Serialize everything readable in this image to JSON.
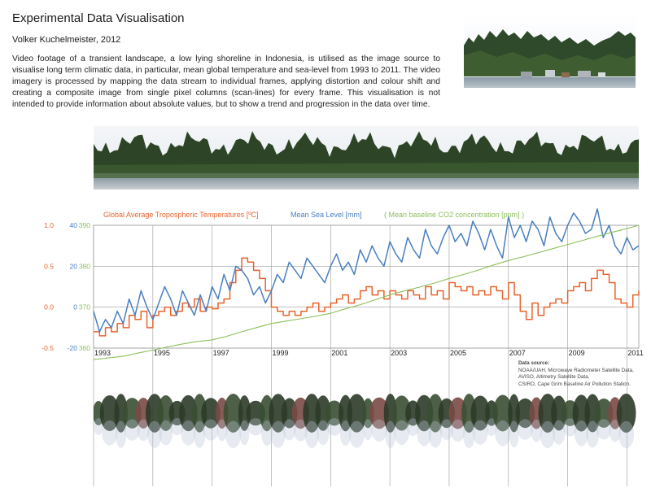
{
  "header": {
    "title": "Experimental Data Visualisation",
    "author": "Volker Kuchelmeister, 2012",
    "description": "Video footage of a transient landscape, a low lying shoreline in Indonesia, is utilised as the image source to visualise long term climatic data, in particular, mean global temperature and sea-level from 1993 to 2011. The video imagery is processed by mapping the data stream to individual frames, applying distortion and colour shift and creating a composite image from single pixel columns (scan-lines) for every frame. This visualisation is not intended to provide information about absolute values, but to show a trend and progression in the data over time."
  },
  "colors": {
    "temperature": "#e8632d",
    "sea_level": "#4a7fbf",
    "co2": "#8cbf5a",
    "grid": "#9a9a9a"
  },
  "source": {
    "heading": "Data source:",
    "lines": [
      "NOAA/UAH, Microwave Radiometer Satellite Data,",
      "AVISO, Altimetry Satellite Data,",
      "CSIRO, Cape Grim Baseline Air Pollution Station."
    ]
  },
  "chart_data": {
    "type": "line",
    "x_range": [
      1993,
      2011.4
    ],
    "x_tick_labels": [
      "1993",
      "1995",
      "1997",
      "1999",
      "2001",
      "2003",
      "2005",
      "2007",
      "2009",
      "2011"
    ],
    "grid": true,
    "axes": [
      {
        "name": "temperature",
        "unit": "ºC",
        "range": [
          -0.5,
          1.0
        ],
        "tick_labels": [
          "1.0",
          "0.5",
          "0.0",
          "-0.5"
        ]
      },
      {
        "name": "sea_level",
        "unit": "mm",
        "range": [
          -20,
          40
        ],
        "tick_labels": [
          "40",
          "20",
          "0",
          "-20"
        ]
      },
      {
        "name": "co2",
        "unit": "ppm",
        "range": [
          360,
          390
        ],
        "tick_labels": [
          "390",
          "380",
          "370",
          "360"
        ]
      }
    ],
    "series": [
      {
        "name": "Global Average Tropospheric Temperatures [ºC]",
        "legend_label": "Global Average Tropospheric Temperatures [ºC]",
        "axis": "temperature",
        "x": [
          1993.0,
          1993.2,
          1993.4,
          1993.6,
          1993.8,
          1994.0,
          1994.2,
          1994.4,
          1994.6,
          1994.8,
          1995.0,
          1995.2,
          1995.4,
          1995.6,
          1995.8,
          1996.0,
          1996.2,
          1996.4,
          1996.6,
          1996.8,
          1997.0,
          1997.2,
          1997.4,
          1997.6,
          1997.8,
          1998.0,
          1998.2,
          1998.4,
          1998.6,
          1998.8,
          1999.0,
          1999.2,
          1999.4,
          1999.6,
          1999.8,
          2000.0,
          2000.2,
          2000.4,
          2000.6,
          2000.8,
          2001.0,
          2001.2,
          2001.4,
          2001.6,
          2001.8,
          2002.0,
          2002.2,
          2002.4,
          2002.6,
          2002.8,
          2003.0,
          2003.2,
          2003.4,
          2003.6,
          2003.8,
          2004.0,
          2004.2,
          2004.4,
          2004.6,
          2004.8,
          2005.0,
          2005.2,
          2005.4,
          2005.6,
          2005.8,
          2006.0,
          2006.2,
          2006.4,
          2006.6,
          2006.8,
          2007.0,
          2007.2,
          2007.4,
          2007.6,
          2007.8,
          2008.0,
          2008.2,
          2008.4,
          2008.6,
          2008.8,
          2009.0,
          2009.2,
          2009.4,
          2009.6,
          2009.8,
          2010.0,
          2010.2,
          2010.4,
          2010.6,
          2010.8,
          2011.0,
          2011.2,
          2011.4
        ],
        "values": [
          -0.3,
          -0.35,
          -0.25,
          -0.3,
          -0.2,
          -0.25,
          -0.1,
          -0.15,
          -0.05,
          -0.25,
          -0.1,
          -0.05,
          0.0,
          -0.1,
          -0.05,
          0.05,
          0.0,
          0.1,
          -0.05,
          0.0,
          -0.02,
          0.05,
          0.1,
          0.3,
          0.45,
          0.6,
          0.55,
          0.45,
          0.35,
          0.2,
          0.0,
          -0.05,
          -0.1,
          -0.05,
          -0.1,
          -0.05,
          0.0,
          0.05,
          -0.05,
          0.0,
          0.05,
          0.1,
          0.15,
          0.05,
          0.1,
          0.2,
          0.25,
          0.15,
          0.2,
          0.1,
          0.2,
          0.15,
          0.1,
          0.2,
          0.15,
          0.1,
          0.25,
          0.15,
          0.2,
          0.1,
          0.3,
          0.25,
          0.2,
          0.25,
          0.15,
          0.2,
          0.15,
          0.25,
          0.2,
          0.1,
          0.3,
          0.15,
          -0.05,
          -0.15,
          0.05,
          -0.1,
          0.0,
          0.05,
          0.1,
          0.05,
          0.2,
          0.25,
          0.3,
          0.2,
          0.35,
          0.45,
          0.4,
          0.3,
          0.1,
          0.05,
          0.0,
          0.15,
          0.2
        ]
      },
      {
        "name": "Mean Sea Level [mm]",
        "legend_label": "Mean Sea Level [mm]",
        "axis": "sea_level",
        "x": [
          1993.0,
          1993.2,
          1993.4,
          1993.6,
          1993.8,
          1994.0,
          1994.2,
          1994.4,
          1994.6,
          1994.8,
          1995.0,
          1995.2,
          1995.4,
          1995.6,
          1995.8,
          1996.0,
          1996.2,
          1996.4,
          1996.6,
          1996.8,
          1997.0,
          1997.2,
          1997.4,
          1997.6,
          1997.8,
          1998.0,
          1998.2,
          1998.4,
          1998.6,
          1998.8,
          1999.0,
          1999.2,
          1999.4,
          1999.6,
          1999.8,
          2000.0,
          2000.2,
          2000.4,
          2000.6,
          2000.8,
          2001.0,
          2001.2,
          2001.4,
          2001.6,
          2001.8,
          2002.0,
          2002.2,
          2002.4,
          2002.6,
          2002.8,
          2003.0,
          2003.2,
          2003.4,
          2003.6,
          2003.8,
          2004.0,
          2004.2,
          2004.4,
          2004.6,
          2004.8,
          2005.0,
          2005.2,
          2005.4,
          2005.6,
          2005.8,
          2006.0,
          2006.2,
          2006.4,
          2006.6,
          2006.8,
          2007.0,
          2007.2,
          2007.4,
          2007.6,
          2007.8,
          2008.0,
          2008.2,
          2008.4,
          2008.6,
          2008.8,
          2009.0,
          2009.2,
          2009.4,
          2009.6,
          2009.8,
          2010.0,
          2010.2,
          2010.4,
          2010.6,
          2010.8,
          2011.0,
          2011.2,
          2011.4
        ],
        "values": [
          -2,
          -12,
          -6,
          -10,
          -2,
          -8,
          4,
          -4,
          8,
          0,
          -6,
          2,
          10,
          4,
          -4,
          8,
          2,
          -4,
          6,
          -2,
          10,
          4,
          16,
          8,
          20,
          18,
          14,
          6,
          10,
          2,
          8,
          16,
          12,
          22,
          18,
          14,
          24,
          20,
          16,
          12,
          20,
          26,
          18,
          22,
          16,
          28,
          22,
          30,
          24,
          20,
          32,
          26,
          22,
          34,
          28,
          24,
          38,
          30,
          26,
          34,
          40,
          32,
          36,
          30,
          42,
          36,
          28,
          38,
          30,
          24,
          44,
          34,
          40,
          32,
          42,
          38,
          30,
          44,
          36,
          32,
          40,
          46,
          42,
          36,
          38,
          48,
          34,
          40,
          30,
          26,
          34,
          28,
          30
        ]
      },
      {
        "name": "( Mean baseline CO2 concentration [ppm] )",
        "legend_label": "( Mean baseline CO2 concentration [ppm] )",
        "axis": "co2",
        "x": [
          1993.0,
          1993.5,
          1994.0,
          1994.5,
          1995.0,
          1995.5,
          1996.0,
          1996.5,
          1997.0,
          1997.5,
          1998.0,
          1998.5,
          1999.0,
          1999.5,
          2000.0,
          2000.5,
          2001.0,
          2001.5,
          2002.0,
          2002.5,
          2003.0,
          2003.5,
          2004.0,
          2004.5,
          2005.0,
          2005.5,
          2006.0,
          2006.5,
          2007.0,
          2007.5,
          2008.0,
          2008.5,
          2009.0,
          2009.5,
          2010.0,
          2010.5,
          2011.0,
          2011.4
        ],
        "values": [
          357.2,
          357.6,
          358.0,
          358.8,
          359.5,
          360.3,
          361.0,
          361.6,
          362.0,
          362.9,
          364.0,
          365.0,
          366.0,
          366.6,
          367.2,
          367.8,
          368.5,
          369.6,
          370.6,
          371.8,
          373.0,
          374.0,
          374.9,
          375.9,
          377.0,
          378.0,
          379.1,
          380.3,
          381.4,
          382.3,
          383.3,
          384.3,
          385.3,
          386.3,
          387.3,
          388.3,
          389.2,
          390.0
        ]
      }
    ]
  }
}
